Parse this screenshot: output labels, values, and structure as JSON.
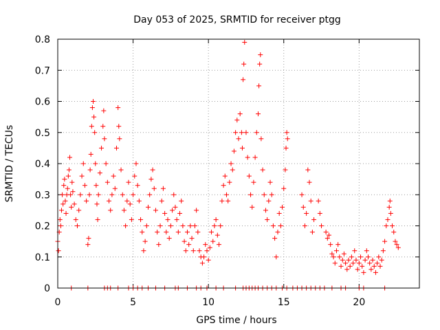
{
  "chart_data": {
    "type": "scatter",
    "title": "Day 053 of 2025, SRMTID for receiver ptgg",
    "xlabel": "GPS time / hours",
    "ylabel": "SRMTID / TECUs",
    "xlim": [
      0,
      24
    ],
    "ylim": [
      0,
      0.8
    ],
    "x_ticks": [
      0,
      5,
      10,
      15,
      20
    ],
    "y_ticks": [
      0,
      0.1,
      0.2,
      0.3,
      0.4,
      0.5,
      0.6,
      0.7,
      0.8
    ],
    "y_tick_labels": [
      "0",
      "0.1",
      "0.2",
      "0.3",
      "0.4",
      "0.5",
      "0.6",
      "0.7",
      "0.8"
    ],
    "grid": true,
    "marker": "+",
    "color": "#ff0000",
    "series": [
      {
        "name": "SRMTID",
        "points": [
          [
            0.0,
            0.15
          ],
          [
            0.05,
            0.12
          ],
          [
            0.1,
            0.18
          ],
          [
            0.15,
            0.22
          ],
          [
            0.2,
            0.2
          ],
          [
            0.25,
            0.25
          ],
          [
            0.3,
            0.3
          ],
          [
            0.35,
            0.27
          ],
          [
            0.4,
            0.33
          ],
          [
            0.45,
            0.35
          ],
          [
            0.5,
            0.28
          ],
          [
            0.55,
            0.24
          ],
          [
            0.6,
            0.3
          ],
          [
            0.65,
            0.32
          ],
          [
            0.7,
            0.36
          ],
          [
            0.75,
            0.38
          ],
          [
            0.8,
            0.42
          ],
          [
            0.85,
            0.3
          ],
          [
            0.9,
            0.26
          ],
          [
            0.95,
            0.34
          ],
          [
            1.0,
            0.31
          ],
          [
            1.1,
            0.27
          ],
          [
            1.2,
            0.22
          ],
          [
            1.3,
            0.2
          ],
          [
            1.4,
            0.25
          ],
          [
            1.5,
            0.3
          ],
          [
            1.6,
            0.36
          ],
          [
            1.7,
            0.4
          ],
          [
            1.8,
            0.33
          ],
          [
            1.9,
            0.28
          ],
          [
            2.0,
            0.14
          ],
          [
            2.05,
            0.16
          ],
          [
            2.1,
            0.3
          ],
          [
            2.15,
            0.38
          ],
          [
            2.2,
            0.43
          ],
          [
            2.25,
            0.52
          ],
          [
            2.3,
            0.58
          ],
          [
            2.35,
            0.6
          ],
          [
            2.4,
            0.55
          ],
          [
            2.45,
            0.5
          ],
          [
            2.5,
            0.4
          ],
          [
            2.55,
            0.33
          ],
          [
            2.6,
            0.27
          ],
          [
            2.65,
            0.22
          ],
          [
            2.7,
            0.3
          ],
          [
            2.8,
            0.37
          ],
          [
            2.9,
            0.45
          ],
          [
            3.0,
            0.52
          ],
          [
            3.05,
            0.57
          ],
          [
            3.1,
            0.48
          ],
          [
            3.2,
            0.4
          ],
          [
            3.3,
            0.34
          ],
          [
            3.4,
            0.28
          ],
          [
            3.5,
            0.25
          ],
          [
            3.6,
            0.3
          ],
          [
            3.7,
            0.36
          ],
          [
            3.8,
            0.32
          ],
          [
            3.9,
            0.45
          ],
          [
            4.0,
            0.58
          ],
          [
            4.05,
            0.52
          ],
          [
            4.1,
            0.48
          ],
          [
            4.2,
            0.38
          ],
          [
            4.3,
            0.3
          ],
          [
            4.4,
            0.25
          ],
          [
            4.5,
            0.2
          ],
          [
            4.6,
            0.28
          ],
          [
            4.7,
            0.34
          ],
          [
            4.8,
            0.27
          ],
          [
            4.9,
            0.22
          ],
          [
            5.0,
            0.3
          ],
          [
            5.1,
            0.36
          ],
          [
            5.2,
            0.4
          ],
          [
            5.3,
            0.33
          ],
          [
            5.4,
            0.28
          ],
          [
            5.5,
            0.22
          ],
          [
            5.6,
            0.18
          ],
          [
            5.7,
            0.12
          ],
          [
            5.8,
            0.15
          ],
          [
            5.9,
            0.2
          ],
          [
            6.0,
            0.26
          ],
          [
            6.1,
            0.3
          ],
          [
            6.2,
            0.35
          ],
          [
            6.3,
            0.38
          ],
          [
            6.4,
            0.32
          ],
          [
            6.5,
            0.25
          ],
          [
            6.6,
            0.18
          ],
          [
            6.7,
            0.14
          ],
          [
            6.8,
            0.2
          ],
          [
            6.9,
            0.28
          ],
          [
            7.0,
            0.32
          ],
          [
            7.1,
            0.24
          ],
          [
            7.2,
            0.18
          ],
          [
            7.3,
            0.22
          ],
          [
            7.4,
            0.16
          ],
          [
            7.5,
            0.2
          ],
          [
            7.6,
            0.25
          ],
          [
            7.7,
            0.3
          ],
          [
            7.8,
            0.26
          ],
          [
            7.9,
            0.22
          ],
          [
            8.0,
            0.18
          ],
          [
            8.1,
            0.24
          ],
          [
            8.2,
            0.28
          ],
          [
            8.3,
            0.2
          ],
          [
            8.4,
            0.15
          ],
          [
            8.5,
            0.12
          ],
          [
            8.6,
            0.18
          ],
          [
            8.7,
            0.14
          ],
          [
            8.8,
            0.2
          ],
          [
            8.9,
            0.16
          ],
          [
            9.0,
            0.12
          ],
          [
            9.1,
            0.2
          ],
          [
            9.2,
            0.25
          ],
          [
            9.3,
            0.18
          ],
          [
            9.4,
            0.12
          ],
          [
            9.5,
            0.1
          ],
          [
            9.6,
            0.08
          ],
          [
            9.7,
            0.1
          ],
          [
            9.8,
            0.14
          ],
          [
            9.9,
            0.12
          ],
          [
            10.0,
            0.09
          ],
          [
            10.1,
            0.13
          ],
          [
            10.2,
            0.18
          ],
          [
            10.3,
            0.15
          ],
          [
            10.4,
            0.2
          ],
          [
            10.5,
            0.22
          ],
          [
            10.6,
            0.17
          ],
          [
            10.7,
            0.14
          ],
          [
            10.8,
            0.2
          ],
          [
            10.9,
            0.28
          ],
          [
            11.0,
            0.33
          ],
          [
            11.1,
            0.36
          ],
          [
            11.2,
            0.3
          ],
          [
            11.3,
            0.28
          ],
          [
            11.4,
            0.34
          ],
          [
            11.5,
            0.4
          ],
          [
            11.6,
            0.38
          ],
          [
            11.7,
            0.44
          ],
          [
            11.8,
            0.5
          ],
          [
            11.9,
            0.54
          ],
          [
            12.0,
            0.48
          ],
          [
            12.1,
            0.56
          ],
          [
            12.2,
            0.5
          ],
          [
            12.25,
            0.45
          ],
          [
            12.3,
            0.67
          ],
          [
            12.35,
            0.72
          ],
          [
            12.4,
            0.79
          ],
          [
            12.5,
            0.5
          ],
          [
            12.6,
            0.42
          ],
          [
            12.7,
            0.36
          ],
          [
            12.8,
            0.3
          ],
          [
            12.9,
            0.26
          ],
          [
            13.0,
            0.34
          ],
          [
            13.1,
            0.42
          ],
          [
            13.2,
            0.5
          ],
          [
            13.3,
            0.56
          ],
          [
            13.35,
            0.65
          ],
          [
            13.4,
            0.72
          ],
          [
            13.45,
            0.75
          ],
          [
            13.5,
            0.48
          ],
          [
            13.6,
            0.38
          ],
          [
            13.7,
            0.3
          ],
          [
            13.8,
            0.25
          ],
          [
            13.9,
            0.22
          ],
          [
            14.0,
            0.28
          ],
          [
            14.1,
            0.34
          ],
          [
            14.2,
            0.3
          ],
          [
            14.3,
            0.2
          ],
          [
            14.4,
            0.16
          ],
          [
            14.5,
            0.1
          ],
          [
            14.6,
            0.18
          ],
          [
            14.7,
            0.24
          ],
          [
            14.8,
            0.2
          ],
          [
            14.9,
            0.26
          ],
          [
            15.0,
            0.32
          ],
          [
            15.1,
            0.38
          ],
          [
            15.15,
            0.45
          ],
          [
            15.2,
            0.5
          ],
          [
            15.25,
            0.48
          ],
          [
            16.2,
            0.3
          ],
          [
            16.3,
            0.26
          ],
          [
            16.4,
            0.2
          ],
          [
            16.5,
            0.24
          ],
          [
            16.6,
            0.38
          ],
          [
            16.7,
            0.34
          ],
          [
            16.8,
            0.28
          ],
          [
            16.9,
            0.18
          ],
          [
            17.0,
            0.22
          ],
          [
            17.3,
            0.28
          ],
          [
            17.4,
            0.24
          ],
          [
            17.5,
            0.2
          ],
          [
            17.8,
            0.18
          ],
          [
            17.9,
            0.16
          ],
          [
            18.0,
            0.17
          ],
          [
            18.1,
            0.14
          ],
          [
            18.2,
            0.11
          ],
          [
            18.3,
            0.1
          ],
          [
            18.4,
            0.08
          ],
          [
            18.5,
            0.12
          ],
          [
            18.6,
            0.14
          ],
          [
            18.7,
            0.1
          ],
          [
            18.8,
            0.07
          ],
          [
            18.9,
            0.09
          ],
          [
            19.0,
            0.11
          ],
          [
            19.1,
            0.08
          ],
          [
            19.2,
            0.06
          ],
          [
            19.3,
            0.09
          ],
          [
            19.4,
            0.07
          ],
          [
            19.5,
            0.1
          ],
          [
            19.6,
            0.08
          ],
          [
            19.7,
            0.12
          ],
          [
            19.8,
            0.09
          ],
          [
            19.9,
            0.06
          ],
          [
            20.0,
            0.08
          ],
          [
            20.1,
            0.1
          ],
          [
            20.2,
            0.07
          ],
          [
            20.3,
            0.05
          ],
          [
            20.4,
            0.09
          ],
          [
            20.5,
            0.12
          ],
          [
            20.6,
            0.1
          ],
          [
            20.7,
            0.08
          ],
          [
            20.8,
            0.06
          ],
          [
            20.9,
            0.09
          ],
          [
            21.0,
            0.07
          ],
          [
            21.1,
            0.05
          ],
          [
            21.2,
            0.08
          ],
          [
            21.3,
            0.1
          ],
          [
            21.4,
            0.07
          ],
          [
            21.5,
            0.09
          ],
          [
            21.6,
            0.12
          ],
          [
            21.7,
            0.15
          ],
          [
            21.8,
            0.2
          ],
          [
            21.9,
            0.22
          ],
          [
            22.0,
            0.26
          ],
          [
            22.05,
            0.28
          ],
          [
            22.1,
            0.24
          ],
          [
            22.2,
            0.2
          ],
          [
            22.3,
            0.18
          ],
          [
            22.4,
            0.15
          ],
          [
            22.5,
            0.14
          ],
          [
            22.6,
            0.13
          ],
          [
            0.9,
            0.0
          ],
          [
            2.0,
            0.0
          ],
          [
            3.1,
            0.0
          ],
          [
            3.3,
            0.0
          ],
          [
            3.5,
            0.0
          ],
          [
            4.0,
            0.0
          ],
          [
            4.7,
            0.0
          ],
          [
            5.0,
            0.0
          ],
          [
            5.3,
            0.0
          ],
          [
            5.6,
            0.0
          ],
          [
            6.0,
            0.0
          ],
          [
            6.5,
            0.0
          ],
          [
            7.1,
            0.0
          ],
          [
            7.8,
            0.0
          ],
          [
            8.0,
            0.0
          ],
          [
            8.6,
            0.0
          ],
          [
            9.2,
            0.0
          ],
          [
            9.5,
            0.0
          ],
          [
            9.9,
            0.0
          ],
          [
            10.5,
            0.0
          ],
          [
            11.0,
            0.0
          ],
          [
            11.8,
            0.0
          ],
          [
            12.3,
            0.0
          ],
          [
            12.5,
            0.0
          ],
          [
            12.7,
            0.0
          ],
          [
            12.9,
            0.0
          ],
          [
            13.1,
            0.0
          ],
          [
            13.3,
            0.0
          ],
          [
            13.6,
            0.0
          ],
          [
            13.9,
            0.0
          ],
          [
            14.2,
            0.0
          ],
          [
            14.5,
            0.0
          ],
          [
            14.9,
            0.0
          ],
          [
            15.2,
            0.0
          ],
          [
            15.6,
            0.0
          ],
          [
            15.9,
            0.0
          ],
          [
            16.2,
            0.0
          ],
          [
            16.5,
            0.0
          ],
          [
            16.8,
            0.0
          ],
          [
            17.1,
            0.0
          ],
          [
            17.4,
            0.0
          ],
          [
            17.7,
            0.0
          ],
          [
            18.2,
            0.0
          ],
          [
            18.8,
            0.0
          ],
          [
            19.1,
            0.0
          ],
          [
            20.0,
            0.0
          ],
          [
            20.3,
            0.0
          ],
          [
            21.7,
            0.0
          ]
        ]
      }
    ]
  }
}
